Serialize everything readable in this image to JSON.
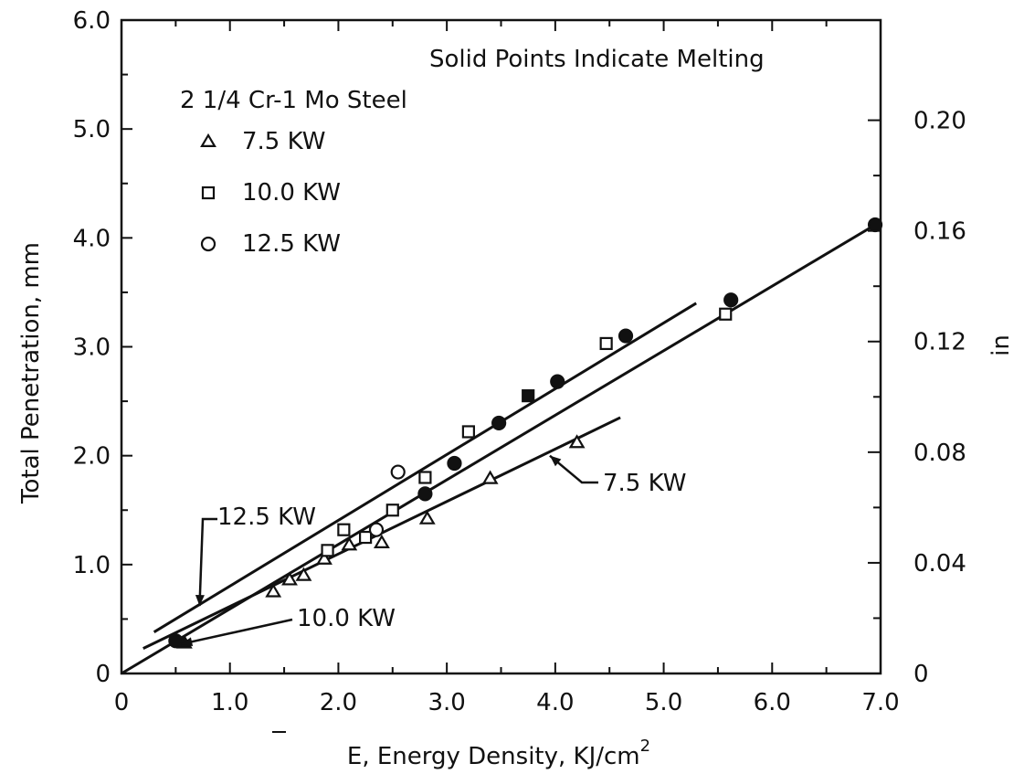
{
  "chart_data": {
    "type": "scatter",
    "title": "",
    "xlabel": "E, Energy Density, KJ/cm",
    "xlabel_superscript": "2",
    "ylabel": "Total Penetration, mm",
    "y2label": "in",
    "xlim": [
      0,
      7.0
    ],
    "ylim": [
      0,
      6.0
    ],
    "y2lim": [
      0,
      0.2362
    ],
    "grid": false,
    "x_ticks": [
      "0",
      "1.0",
      "2.0",
      "3.0",
      "4.0",
      "5.0",
      "6.0",
      "7.0"
    ],
    "y_ticks": [
      "0",
      "1.0",
      "2.0",
      "3.0",
      "4.0",
      "5.0",
      "6.0"
    ],
    "y2_ticks": [
      {
        "value": 0,
        "label": "0"
      },
      {
        "value": 0.04,
        "label": "0.04"
      },
      {
        "value": 0.08,
        "label": "0.08"
      },
      {
        "value": 0.12,
        "label": "0.12"
      },
      {
        "value": 0.16,
        "label": "0.16"
      },
      {
        "value": 0.2,
        "label": "0.20"
      }
    ],
    "note": "Solid Points Indicate Melting",
    "legend_title": "2 1/4 Cr-1 Mo Steel",
    "legend_position": "top-left",
    "series": [
      {
        "name": "7.5 KW",
        "marker": "triangle",
        "points": [
          {
            "x": 0.58,
            "y": 0.28,
            "filled": true
          },
          {
            "x": 1.4,
            "y": 0.75,
            "filled": false
          },
          {
            "x": 1.55,
            "y": 0.86,
            "filled": false
          },
          {
            "x": 1.68,
            "y": 0.9,
            "filled": false
          },
          {
            "x": 1.87,
            "y": 1.05,
            "filled": false
          },
          {
            "x": 2.1,
            "y": 1.18,
            "filled": false
          },
          {
            "x": 2.4,
            "y": 1.2,
            "filled": false
          },
          {
            "x": 2.82,
            "y": 1.42,
            "filled": false
          },
          {
            "x": 3.4,
            "y": 1.79,
            "filled": false
          },
          {
            "x": 4.2,
            "y": 2.12,
            "filled": false
          }
        ],
        "fit": [
          [
            0.2,
            0.23
          ],
          [
            4.6,
            2.35
          ]
        ]
      },
      {
        "name": "10.0 KW",
        "marker": "square",
        "points": [
          {
            "x": 1.9,
            "y": 1.13,
            "filled": false
          },
          {
            "x": 2.05,
            "y": 1.32,
            "filled": false
          },
          {
            "x": 2.25,
            "y": 1.25,
            "filled": false
          },
          {
            "x": 2.5,
            "y": 1.5,
            "filled": false
          },
          {
            "x": 2.8,
            "y": 1.8,
            "filled": false
          },
          {
            "x": 3.2,
            "y": 2.22,
            "filled": false
          },
          {
            "x": 3.75,
            "y": 2.55,
            "filled": true
          },
          {
            "x": 4.47,
            "y": 3.03,
            "filled": false
          },
          {
            "x": 5.57,
            "y": 3.3,
            "filled": false
          }
        ],
        "fit": [
          [
            0.0,
            0.0
          ],
          [
            6.95,
            4.12
          ]
        ]
      },
      {
        "name": "12.5 KW",
        "marker": "circle",
        "points": [
          {
            "x": 0.5,
            "y": 0.3,
            "filled": true
          },
          {
            "x": 2.35,
            "y": 1.32,
            "filled": false
          },
          {
            "x": 2.55,
            "y": 1.85,
            "filled": false
          },
          {
            "x": 2.8,
            "y": 1.65,
            "filled": true
          },
          {
            "x": 3.07,
            "y": 1.93,
            "filled": true
          },
          {
            "x": 3.48,
            "y": 2.3,
            "filled": true
          },
          {
            "x": 4.02,
            "y": 2.68,
            "filled": true
          },
          {
            "x": 4.65,
            "y": 3.1,
            "filled": true
          },
          {
            "x": 5.62,
            "y": 3.43,
            "filled": true
          },
          {
            "x": 6.95,
            "y": 4.12,
            "filled": true
          }
        ],
        "fit": [
          [
            0.3,
            0.38
          ],
          [
            5.3,
            3.4
          ]
        ]
      }
    ],
    "annotations": [
      {
        "text": "12.5 KW",
        "target": [
          0.72,
          0.62
        ]
      },
      {
        "text": "10.0 KW",
        "target": [
          0.55,
          0.27
        ]
      },
      {
        "text": "7.5 KW",
        "target": [
          3.95,
          2.0
        ]
      }
    ]
  }
}
